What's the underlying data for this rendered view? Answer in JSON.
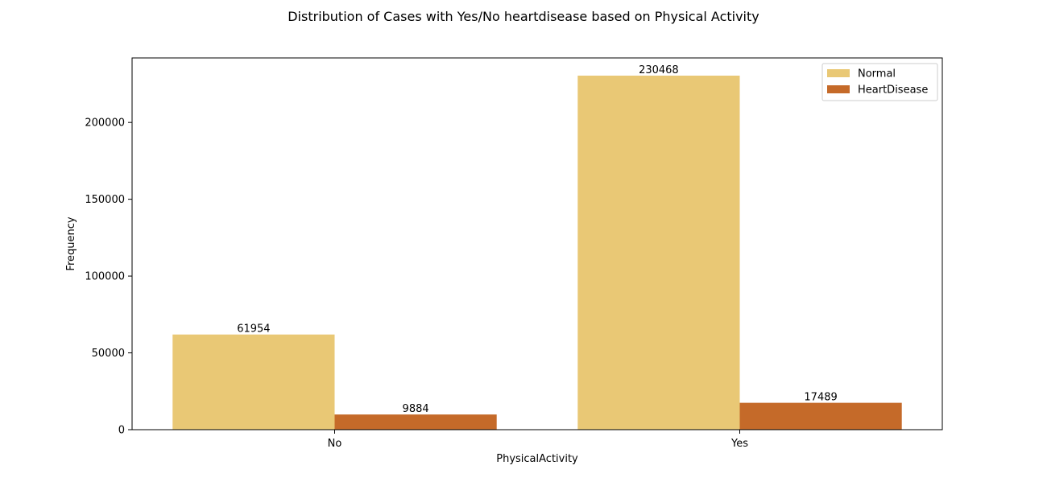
{
  "chart_data": {
    "type": "bar",
    "title": "Distribution of Cases with Yes/No heartdisease based on Physical Activity",
    "xlabel": "PhysicalActivity",
    "ylabel": "Frequency",
    "categories": [
      "No",
      "Yes"
    ],
    "series": [
      {
        "name": "Normal",
        "values": [
          61954,
          230468
        ],
        "color": "#e9c875"
      },
      {
        "name": "HeartDisease",
        "values": [
          9884,
          17489
        ],
        "color": "#c56a29"
      }
    ],
    "ylim": [
      0,
      242000
    ],
    "yticks": [
      0,
      50000,
      100000,
      150000,
      200000
    ],
    "ytick_labels": [
      "0",
      "50000",
      "100000",
      "150000",
      "200000"
    ],
    "data_labels": true,
    "legend_position": "top-right",
    "grid": false
  }
}
